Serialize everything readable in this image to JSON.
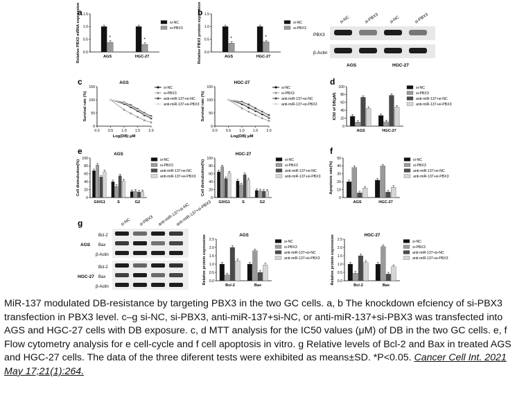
{
  "colors": {
    "nc": "#111111",
    "pbx3": "#9a9a9a",
    "anc": "#4a4a4a",
    "apbx3": "#d6d6d6"
  },
  "panels": {
    "a": {
      "letter": "a"
    },
    "b": {
      "letter": "b"
    },
    "c": {
      "letter": "c"
    },
    "d": {
      "letter": "d"
    },
    "e": {
      "letter": "e"
    },
    "f": {
      "letter": "f"
    },
    "g": {
      "letter": "g"
    }
  },
  "blot_b": {
    "col_labels": [
      "si-NC",
      "si-PBX3",
      "si-NC",
      "si-PBX3"
    ],
    "row_labels": [
      "PBX3",
      "β-Actin"
    ],
    "group_labels": [
      "AGS",
      "HGC-27"
    ]
  },
  "blot_g": {
    "col_labels": [
      "si-NC",
      "si-PBX3",
      "anti-miR-137+si-NC",
      "anti-miR-137+si-PBX3"
    ],
    "ags_label": "AGS",
    "hgc_label": "HGC-27",
    "ags_rows": [
      "Bcl-2",
      "Bax",
      "β-Actin"
    ],
    "hgc_rows": [
      "Bcl-2",
      "Bax",
      "β-Actin"
    ]
  },
  "legends": {
    "two": [
      "si-NC",
      "si-PBX3"
    ],
    "four": [
      "si-NC",
      "si-PBX3",
      "anti-miR-137+si-NC",
      "anti-miR-137+si-PBX3"
    ]
  },
  "caption": {
    "text": "MiR-137 modulated DB-resistance by targeting PBX3 in the two GC cells. a, b The knockdown efciency of si-PBX3 transfection in PBX3 level. c–g si-NC, si-PBX3, anti-miR-137+si-NC, or anti-miR-137+si-PBX3 was transfected into AGS and HGC-27 cells with DB exposure. c, d MTT analysis for the IC50 values (μM) of DB in the two GC cells. e, f Flow cytometry analysis for e cell-cycle and f cell apoptosis in vitro. g Relative levels of Bcl-2 and Bax in treated AGS and HGC-27 cells. The data of the three diferent tests were exhibited as means±SD. *P<0.05.",
    "citation": "Cancer Cell Int. 2021 May 17;21(1):264."
  },
  "chart_data": [
    {
      "id": "a",
      "type": "bar",
      "title": "",
      "ylabel": "Relative PBX3 mRNA expression",
      "ylim": [
        0,
        1.5
      ],
      "yticks": [
        "0.0",
        "0.5",
        "1.0",
        "1.5"
      ],
      "categories": [
        "AGS",
        "HGC-27"
      ],
      "series": [
        {
          "name": "si-NC",
          "values": [
            1.0,
            1.0
          ]
        },
        {
          "name": "si-PBX3",
          "values": [
            0.38,
            0.3
          ]
        }
      ],
      "annotations": [
        "*",
        "*"
      ]
    },
    {
      "id": "b",
      "type": "bar",
      "title": "",
      "ylabel": "Relative PBX3 protein expression",
      "ylim": [
        0,
        1.5
      ],
      "yticks": [
        "0.0",
        "0.5",
        "1.0",
        "1.5"
      ],
      "categories": [
        "AGS",
        "HGC-27"
      ],
      "series": [
        {
          "name": "si-NC",
          "values": [
            1.0,
            1.0
          ]
        },
        {
          "name": "si-PBX3",
          "values": [
            0.35,
            0.4
          ]
        }
      ],
      "annotations": [
        "*",
        "*"
      ]
    },
    {
      "id": "c1",
      "type": "line",
      "title": "AGS",
      "xlabel": "Log(DB) μM",
      "ylabel": "Survival rate (%)",
      "xlim": [
        0,
        2.0
      ],
      "ylim": [
        0,
        150
      ],
      "xticks": [
        "0.0",
        "0.5",
        "1.0",
        "1.5",
        "2.0"
      ],
      "yticks": [
        "0",
        "50",
        "100",
        "150"
      ],
      "x": [
        0.5,
        1.0,
        1.25,
        1.5,
        1.75,
        2.0
      ],
      "series": [
        {
          "name": "si-NC",
          "values": [
            100,
            85,
            72,
            58,
            42,
            30
          ]
        },
        {
          "name": "si-PBX3",
          "values": [
            100,
            62,
            48,
            35,
            22,
            14
          ]
        },
        {
          "name": "anti-miR-137+si-NC",
          "values": [
            100,
            90,
            80,
            65,
            50,
            38
          ]
        },
        {
          "name": "anti-miR-137+si-PBX3",
          "values": [
            100,
            88,
            76,
            62,
            46,
            34
          ]
        }
      ]
    },
    {
      "id": "c2",
      "type": "line",
      "title": "HGC-27",
      "xlabel": "Log(DB) μM",
      "ylabel": "Survival rate (%)",
      "xlim": [
        0,
        2.0
      ],
      "ylim": [
        0,
        150
      ],
      "xticks": [
        "0.0",
        "0.5",
        "1.0",
        "1.5",
        "2.0"
      ],
      "yticks": [
        "0",
        "50",
        "100",
        "150"
      ],
      "x": [
        0.5,
        1.0,
        1.25,
        1.5,
        1.75,
        2.0
      ],
      "series": [
        {
          "name": "si-NC",
          "values": [
            100,
            84,
            70,
            58,
            45,
            32
          ]
        },
        {
          "name": "si-PBX3",
          "values": [
            100,
            68,
            55,
            42,
            30,
            20
          ]
        },
        {
          "name": "anti-miR-137+si-NC",
          "values": [
            100,
            92,
            82,
            68,
            55,
            42
          ]
        },
        {
          "name": "anti-miR-137+si-PBX3",
          "values": [
            100,
            88,
            76,
            62,
            50,
            36
          ]
        }
      ]
    },
    {
      "id": "d",
      "type": "bar",
      "title": "",
      "ylabel": "IC50 of DB(μM)",
      "ylim": [
        0,
        100
      ],
      "yticks": [
        "0",
        "20",
        "40",
        "60",
        "80",
        "100"
      ],
      "categories": [
        "AGS",
        "HGC-27"
      ],
      "series": [
        {
          "name": "si-NC",
          "values": [
            25,
            27
          ]
        },
        {
          "name": "si-PBX3",
          "values": [
            10,
            11
          ]
        },
        {
          "name": "anti-miR-137+si-NC",
          "values": [
            73,
            78
          ]
        },
        {
          "name": "anti-miR-137+si-PBX3",
          "values": [
            45,
            48
          ]
        }
      ]
    },
    {
      "id": "e1",
      "type": "bar",
      "title": "AGS",
      "ylabel": "Cell distrubution(%)",
      "ylim": [
        0,
        100
      ],
      "yticks": [
        "0",
        "20",
        "40",
        "60",
        "80",
        "100"
      ],
      "categories": [
        "G0/G1",
        "S",
        "G2"
      ],
      "series": [
        {
          "name": "si-NC",
          "values": [
            68,
            40,
            15
          ]
        },
        {
          "name": "si-PBX3",
          "values": [
            82,
            28,
            16
          ]
        },
        {
          "name": "anti-miR-137+si-NC",
          "values": [
            52,
            55,
            14
          ]
        },
        {
          "name": "anti-miR-137+si-PBX3",
          "values": [
            65,
            42,
            15
          ]
        }
      ]
    },
    {
      "id": "e2",
      "type": "bar",
      "title": "HGC-27",
      "ylabel": "Cell distrubution(%)",
      "ylim": [
        0,
        100
      ],
      "yticks": [
        "0",
        "20",
        "40",
        "60",
        "80",
        "100"
      ],
      "categories": [
        "G0/G1",
        "S",
        "G2"
      ],
      "series": [
        {
          "name": "si-NC",
          "values": [
            65,
            42,
            18
          ]
        },
        {
          "name": "si-PBX3",
          "values": [
            78,
            32,
            17
          ]
        },
        {
          "name": "anti-miR-137+si-NC",
          "values": [
            48,
            58,
            16
          ]
        },
        {
          "name": "anti-miR-137+si-PBX3",
          "values": [
            62,
            45,
            16
          ]
        }
      ]
    },
    {
      "id": "f",
      "type": "bar",
      "title": "",
      "ylabel": "Apoptosis rate(%)",
      "ylim": [
        0,
        50
      ],
      "yticks": [
        "0",
        "10",
        "20",
        "30",
        "40",
        "50"
      ],
      "categories": [
        "AGS",
        "HGC-27"
      ],
      "series": [
        {
          "name": "si-NC",
          "values": [
            20,
            22
          ]
        },
        {
          "name": "si-PBX3",
          "values": [
            38,
            40
          ]
        },
        {
          "name": "anti-miR-137+si-NC",
          "values": [
            6,
            7
          ]
        },
        {
          "name": "anti-miR-137+si-PBX3",
          "values": [
            12,
            13
          ]
        }
      ]
    },
    {
      "id": "g1",
      "type": "bar",
      "title": "AGS",
      "ylabel": "Relative protein expression",
      "ylim": [
        0,
        2.5
      ],
      "yticks": [
        "0.0",
        "0.5",
        "1.0",
        "1.5",
        "2.0",
        "2.5"
      ],
      "categories": [
        "Bcl-2",
        "Bax"
      ],
      "series": [
        {
          "name": "si-NC",
          "values": [
            1.0,
            1.0
          ]
        },
        {
          "name": "si-PBX3",
          "values": [
            0.35,
            1.8
          ]
        },
        {
          "name": "anti-miR-137+si-NC",
          "values": [
            2.0,
            0.5
          ]
        },
        {
          "name": "anti-miR-137+si-PBX3",
          "values": [
            1.2,
            0.95
          ]
        }
      ]
    },
    {
      "id": "g2",
      "type": "bar",
      "title": "HGC-27",
      "ylabel": "Relative protein expression",
      "ylim": [
        0,
        2.5
      ],
      "yticks": [
        "0.0",
        "0.5",
        "1.0",
        "1.5",
        "2.0",
        "2.5"
      ],
      "categories": [
        "Bcl-2",
        "Bax"
      ],
      "series": [
        {
          "name": "si-NC",
          "values": [
            1.0,
            1.0
          ]
        },
        {
          "name": "si-PBX3",
          "values": [
            0.45,
            2.05
          ]
        },
        {
          "name": "anti-miR-137+si-NC",
          "values": [
            1.5,
            0.4
          ]
        },
        {
          "name": "anti-miR-137+si-PBX3",
          "values": [
            1.1,
            0.85
          ]
        }
      ]
    }
  ]
}
